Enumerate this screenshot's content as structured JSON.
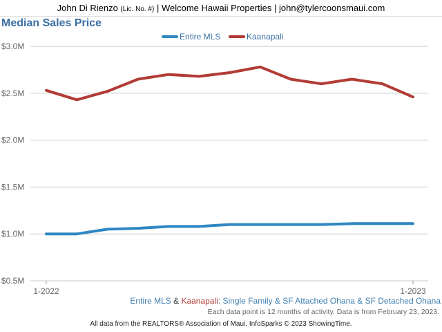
{
  "header": {
    "name": "John Di Rienzo",
    "license": "(Lic. No. #)",
    "rest": "| Welcome Hawaii Properties | john@tylercoonsmaui.com"
  },
  "chart_data": {
    "type": "line",
    "title": "Median Sales Price",
    "x": [
      "1-2022",
      "",
      "",
      "",
      "",
      "",
      "",
      "",
      "",
      "",
      "",
      "",
      "1-2023"
    ],
    "x_tick_labels": [
      "1-2022",
      "1-2023"
    ],
    "y_ticks": [
      "$0.5M",
      "$1.0M",
      "$1.5M",
      "$2.0M",
      "$2.5M",
      "$3.0M"
    ],
    "y_tick_values": [
      0.5,
      1.0,
      1.5,
      2.0,
      2.5,
      3.0
    ],
    "ylim": [
      0.5,
      3.0
    ],
    "grid": true,
    "legend_position": "top-center",
    "series": [
      {
        "name": "Entire MLS",
        "color": "#2f87c3",
        "values": [
          1.0,
          1.0,
          1.05,
          1.06,
          1.08,
          1.08,
          1.1,
          1.1,
          1.1,
          1.1,
          1.11,
          1.11,
          1.11
        ]
      },
      {
        "name": "Kaanapali",
        "color": "#b23b36",
        "values": [
          2.53,
          2.43,
          2.52,
          2.65,
          2.7,
          2.68,
          2.72,
          2.78,
          2.65,
          2.6,
          2.65,
          2.6,
          2.46
        ]
      }
    ]
  },
  "description": {
    "entire": "Entire MLS",
    "amp": " & ",
    "kaan": "Kaanapali",
    "rest": ": Single Family & SF Attached Ohana & SF Detached Ohana"
  },
  "note": "Each data point is 12 months of activity. Data is from February 23, 2023.",
  "footer": "All data from the REALTORS® Association of Maui. InfoSparks © 2023 ShowingTime."
}
